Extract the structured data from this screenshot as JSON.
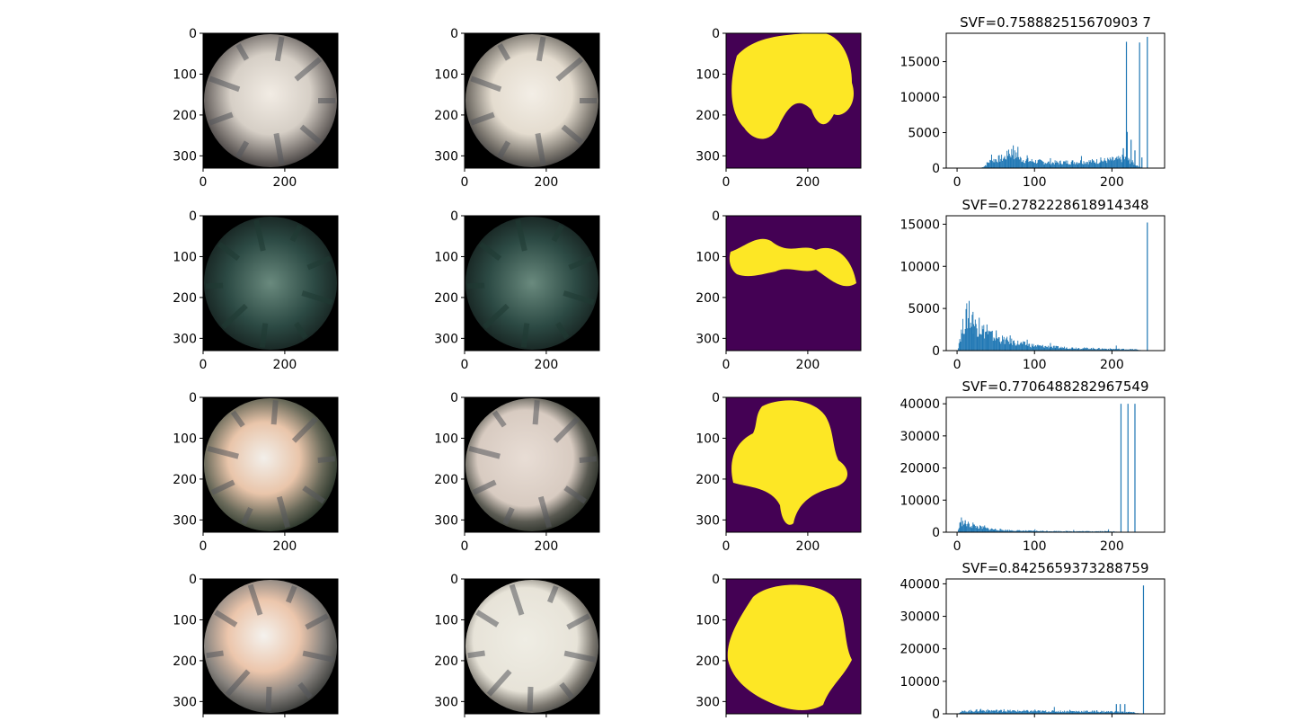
{
  "figure": {
    "image_axes": {
      "x_ticks": [
        0,
        200
      ],
      "y_ticks": [
        0,
        100,
        200,
        300
      ],
      "extent": [
        0,
        330
      ]
    },
    "colors": {
      "mask_background": "#440154",
      "mask_sky": "#fde725",
      "hist_bar": "#1f77b4",
      "photo_border": "#000000"
    }
  },
  "chart_data": [
    {
      "type": "bar",
      "row": 0,
      "title": "SVF=0.758882515670903 7",
      "x_ticks": [
        0,
        100,
        200
      ],
      "y_ticks": [
        0,
        5000,
        10000,
        15000
      ],
      "xlim": [
        -14,
        268
      ],
      "ylim": [
        0,
        19000
      ],
      "series": [
        {
          "spikes": [
            [
              218,
              17800
            ],
            [
              219,
              5100
            ],
            [
              224,
              4000
            ],
            [
              229,
              2500
            ],
            [
              235,
              17700
            ],
            [
              245,
              18500
            ],
            [
              238,
              1500
            ],
            [
              214,
              2800
            ]
          ]
        }
      ],
      "base": [
        [
          30,
          0
        ],
        [
          35,
          300
        ],
        [
          40,
          900
        ],
        [
          50,
          1300
        ],
        [
          60,
          1500
        ],
        [
          70,
          2300
        ],
        [
          80,
          1400
        ],
        [
          90,
          1100
        ],
        [
          100,
          1000
        ],
        [
          120,
          800
        ],
        [
          150,
          900
        ],
        [
          180,
          1000
        ],
        [
          200,
          1200
        ],
        [
          210,
          1300
        ],
        [
          215,
          1500
        ],
        [
          225,
          900
        ],
        [
          232,
          400
        ],
        [
          240,
          0
        ]
      ],
      "base_spikes": [
        [
          72,
          3200
        ],
        [
          78,
          3000
        ],
        [
          66,
          2600
        ],
        [
          44,
          1900
        ],
        [
          90,
          1800
        ],
        [
          160,
          1700
        ],
        [
          185,
          1500
        ],
        [
          120,
          1400
        ]
      ]
    },
    {
      "type": "bar",
      "row": 1,
      "title": "SVF=0.2782228618914348",
      "x_ticks": [
        0,
        100,
        200
      ],
      "y_ticks": [
        0,
        5000,
        10000,
        15000
      ],
      "xlim": [
        -14,
        268
      ],
      "ylim": [
        0,
        16000
      ],
      "series": [
        {
          "spikes": [
            [
              245,
              15200
            ]
          ]
        }
      ],
      "base": [
        [
          0,
          0
        ],
        [
          3,
          1500
        ],
        [
          8,
          3200
        ],
        [
          12,
          4200
        ],
        [
          18,
          3600
        ],
        [
          25,
          3000
        ],
        [
          35,
          2400
        ],
        [
          45,
          1800
        ],
        [
          60,
          1300
        ],
        [
          80,
          900
        ],
        [
          100,
          600
        ],
        [
          130,
          400
        ],
        [
          160,
          300
        ],
        [
          200,
          200
        ],
        [
          230,
          150
        ],
        [
          240,
          0
        ]
      ],
      "base_spikes": [
        [
          15,
          5900
        ],
        [
          20,
          4600
        ],
        [
          28,
          3900
        ],
        [
          38,
          3100
        ],
        [
          50,
          2400
        ],
        [
          68,
          1800
        ],
        [
          90,
          1300
        ],
        [
          120,
          900
        ],
        [
          205,
          600
        ]
      ]
    },
    {
      "type": "bar",
      "row": 2,
      "title": "SVF=0.7706488282967549",
      "x_ticks": [
        0,
        100,
        200
      ],
      "y_ticks": [
        0,
        10000,
        20000,
        30000,
        40000
      ],
      "xlim": [
        -14,
        268
      ],
      "ylim": [
        0,
        42000
      ],
      "series": [
        {
          "spikes": [
            [
              211,
              40000
            ],
            [
              220,
              40000
            ],
            [
              229,
              40000
            ]
          ]
        }
      ],
      "base": [
        [
          0,
          0
        ],
        [
          3,
          2500
        ],
        [
          8,
          3000
        ],
        [
          15,
          2400
        ],
        [
          25,
          1800
        ],
        [
          40,
          1100
        ],
        [
          60,
          700
        ],
        [
          80,
          500
        ],
        [
          100,
          400
        ],
        [
          150,
          300
        ],
        [
          200,
          300
        ],
        [
          210,
          0
        ]
      ],
      "base_spikes": [
        [
          5,
          4600
        ],
        [
          10,
          3700
        ],
        [
          20,
          3000
        ],
        [
          35,
          2100
        ],
        [
          100,
          900
        ],
        [
          150,
          700
        ],
        [
          195,
          900
        ]
      ]
    },
    {
      "type": "bar",
      "row": 3,
      "title": "SVF=0.8425659373288759",
      "x_ticks": [],
      "y_ticks": [
        0,
        10000,
        20000,
        30000,
        40000
      ],
      "xlim": [
        -14,
        268
      ],
      "ylim": [
        0,
        41500
      ],
      "series": [
        {
          "spikes": [
            [
              240,
              39500
            ],
            [
              205,
              3000
            ],
            [
              210,
              3000
            ],
            [
              216,
              3000
            ]
          ]
        }
      ],
      "base": [
        [
          0,
          0
        ],
        [
          5,
          700
        ],
        [
          15,
          900
        ],
        [
          30,
          1100
        ],
        [
          50,
          1000
        ],
        [
          80,
          900
        ],
        [
          120,
          800
        ],
        [
          160,
          800
        ],
        [
          200,
          700
        ],
        [
          225,
          500
        ],
        [
          238,
          0
        ]
      ],
      "base_spikes": [
        [
          30,
          1500
        ],
        [
          60,
          1400
        ],
        [
          100,
          1300
        ],
        [
          125,
          2100
        ],
        [
          145,
          1200
        ],
        [
          180,
          1100
        ]
      ]
    }
  ]
}
